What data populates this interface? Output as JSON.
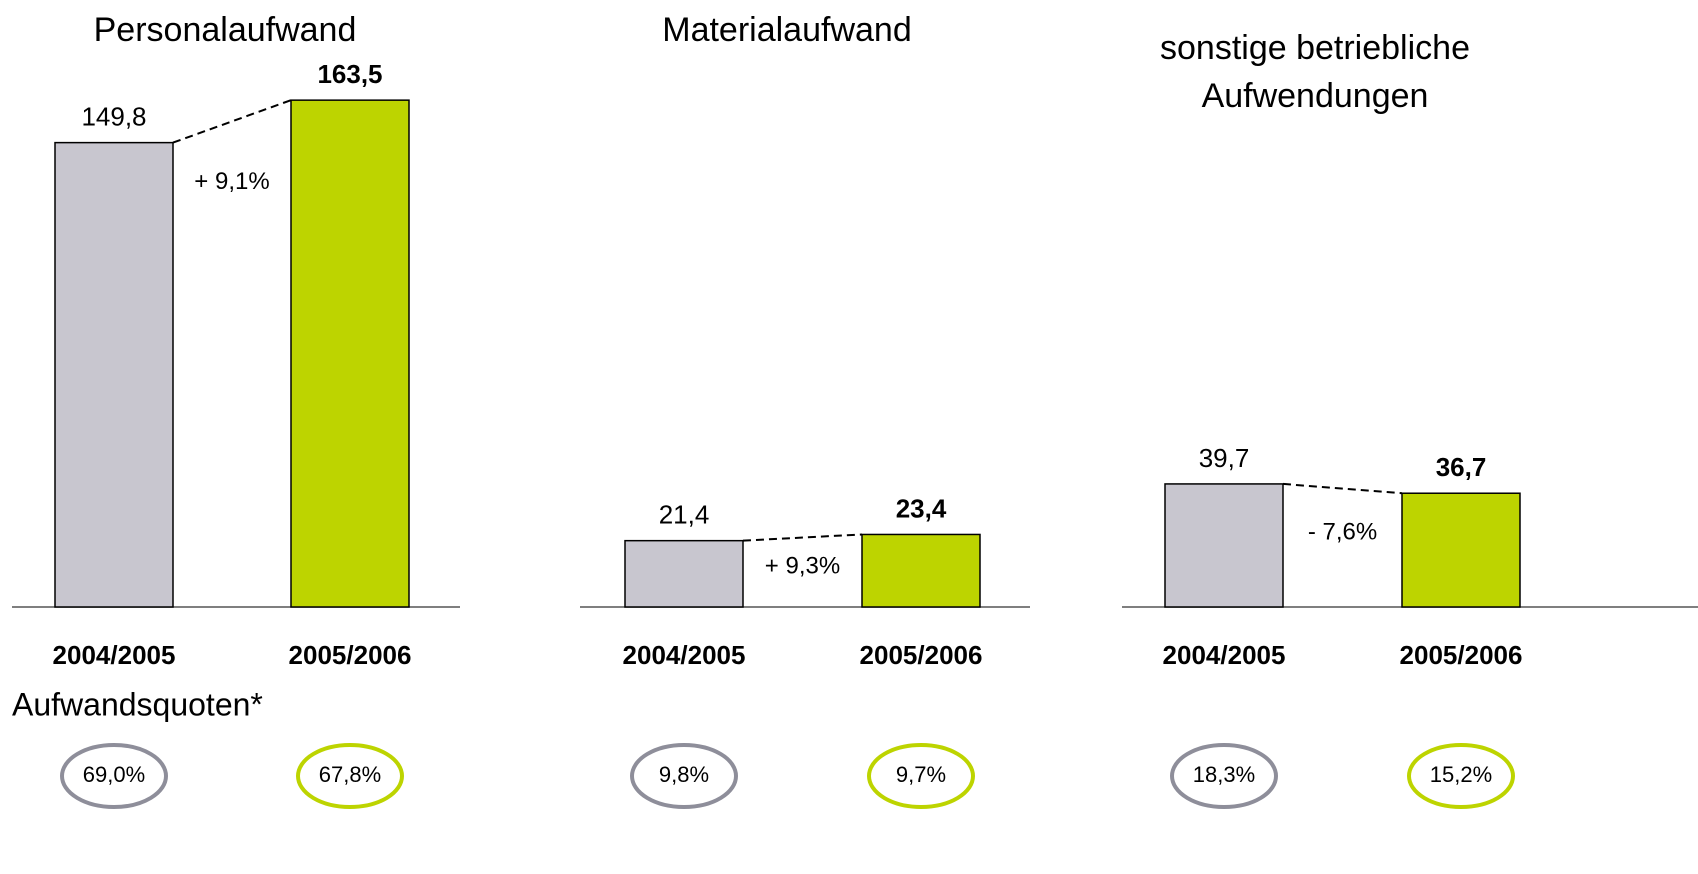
{
  "chart_data": [
    {
      "type": "bar",
      "title": "Personalaufwand",
      "categories": [
        "2004/2005",
        "2005/2006"
      ],
      "values": [
        149.8,
        163.5
      ],
      "value_labels": [
        "149,8",
        "163,5"
      ],
      "colors": [
        "#c8c6cf",
        "#bdd400"
      ],
      "change": "+ 9,1%",
      "quotes": [
        "69,0%",
        "67,8%"
      ]
    },
    {
      "type": "bar",
      "title": "Materialaufwand",
      "categories": [
        "2004/2005",
        "2005/2006"
      ],
      "values": [
        21.4,
        23.4
      ],
      "value_labels": [
        "21,4",
        "23,4"
      ],
      "colors": [
        "#c8c6cf",
        "#bdd400"
      ],
      "change": "+ 9,3%",
      "quotes": [
        "9,8%",
        "9,7%"
      ]
    },
    {
      "type": "bar",
      "title": "sonstige betriebliche Aufwendungen",
      "categories": [
        "2004/2005",
        "2005/2006"
      ],
      "values": [
        39.7,
        36.7
      ],
      "value_labels": [
        "39,7",
        "36,7"
      ],
      "colors": [
        "#c8c6cf",
        "#bdd400"
      ],
      "change": "- 7,6%",
      "quotes": [
        "18,3%",
        "15,2%"
      ]
    }
  ],
  "footnote_title": "Aufwandsquoten*"
}
